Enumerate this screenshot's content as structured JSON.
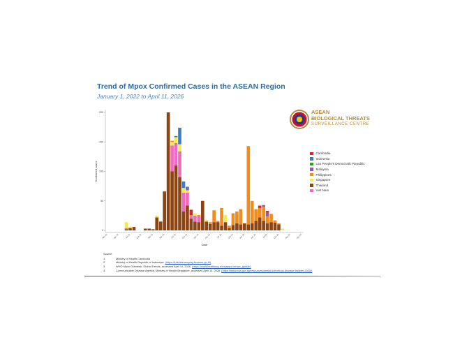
{
  "header": {
    "title": "Trend of Mpox Confirmed Cases in the ASEAN Region",
    "subtitle": "January 1, 2022 to April 11, 2026"
  },
  "logo": {
    "line1": "ASEAN",
    "line2": "BIOLOGICAL THREATS",
    "line3": "SURVEILLANCE CENTRE",
    "colors": {
      "gold": "#b58b35",
      "red": "#c8102e",
      "blue": "#1a3c8a"
    }
  },
  "colors": {
    "Cambodia": "#d62728",
    "Indonesia": "#3a7dc9",
    "Lao People's Democratic Republic": "#2ca02c",
    "Malaysia": "#8e5ba8",
    "Philippines": "#f28c1e",
    "Singapore": "#f5ea4d",
    "Thailand": "#8b4513",
    "Viet Nam": "#f06bbf"
  },
  "sources": {
    "heading": "Source:",
    "items": [
      {
        "num": "1.",
        "text": "Ministry of Health Cambodia",
        "link": ""
      },
      {
        "num": "2.",
        "text": "Ministry of Health Republic of Indonesia",
        "link": "(https://infeksiemerging.kemkes.go.id)"
      },
      {
        "num": "3.",
        "text": "WHO Mpox Outbreak: Global Trends, accessed April 14, 2026",
        "link": "(https://worldhealthorg.shinyapps.io/mpx_global/)"
      },
      {
        "num": "4.",
        "text": "Communicable Disease Agency, Ministry of Health Singapore, accessed April 14, 2026",
        "link": "(https://www.cda.gov.sg/resources/weekly-infectious-disease-bulletin-2025/)"
      }
    ]
  },
  "chart_data": {
    "type": "bar",
    "stacked": true,
    "title": "Trend of Mpox Confirmed Cases in the ASEAN Region",
    "subtitle": "January 1, 2022 to April 11, 2026",
    "xlabel": "Date",
    "ylabel": "Confirmed cases",
    "ylim": [
      0,
      200
    ],
    "yticks": [
      0,
      50,
      100,
      150,
      200
    ],
    "xticks": [
      "Jan 22",
      "Apr 22",
      "Jul 22",
      "Oct 22",
      "Jan 23",
      "Apr 23",
      "Jul 23",
      "Oct 23",
      "Jan 24",
      "Apr 24",
      "Jul 24",
      "Oct 24",
      "Jan 25",
      "Apr 25",
      "Jul 25",
      "Oct 25",
      "Jan 26",
      "Apr 26"
    ],
    "legend_position": "right",
    "legend": [
      "Cambodia",
      "Indonesia",
      "Lao People's Democratic Republic",
      "Malaysia",
      "Philippines",
      "Singapore",
      "Thailand",
      "Viet Nam"
    ],
    "categories": [
      "Jan 22",
      "Feb 22",
      "Mar 22",
      "Apr 22",
      "May 22",
      "Jun 22",
      "Jul 22",
      "Aug 22",
      "Sep 22",
      "Oct 22",
      "Nov 22",
      "Dec 22",
      "Jan 23",
      "Feb 23",
      "Mar 23",
      "Apr 23",
      "May 23",
      "Jun 23",
      "Jul 23",
      "Aug 23",
      "Sep 23",
      "Oct 23",
      "Nov 23",
      "Dec 23",
      "Jan 24",
      "Feb 24",
      "Mar 24",
      "Apr 24",
      "May 24",
      "Jun 24",
      "Jul 24",
      "Aug 24",
      "Sep 24",
      "Oct 24",
      "Nov 24",
      "Dec 24",
      "Jan 25",
      "Feb 25",
      "Mar 25",
      "Apr 25",
      "May 25",
      "Jun 25",
      "Jul 25",
      "Aug 25",
      "Sep 25",
      "Oct 25",
      "Nov 25",
      "Dec 25",
      "Jan 26",
      "Feb 26",
      "Mar 26",
      "Apr 26"
    ],
    "series": [
      {
        "name": "Cambodia",
        "values": [
          0,
          0,
          0,
          0,
          0,
          0,
          0,
          0,
          0,
          0,
          0,
          0,
          0,
          0,
          0,
          0,
          0,
          0,
          0,
          0,
          0,
          0,
          0,
          0,
          0,
          0,
          0,
          0,
          0,
          0,
          0,
          0,
          0,
          0,
          0,
          0,
          0,
          0,
          0,
          0,
          0,
          0,
          0,
          0,
          0,
          0,
          0,
          0,
          0,
          0,
          0,
          0
        ]
      },
      {
        "name": "Indonesia",
        "values": [
          0,
          0,
          0,
          0,
          0,
          0,
          0,
          0,
          0,
          0,
          0,
          0,
          0,
          0,
          0,
          0,
          0,
          0,
          0,
          0,
          0,
          0,
          0,
          0,
          0,
          0,
          0,
          0,
          0,
          0,
          0,
          0,
          0,
          0,
          0,
          0,
          0,
          0,
          0,
          0,
          0,
          0,
          0,
          0,
          0,
          0,
          0,
          0,
          0,
          0,
          0,
          0
        ]
      },
      {
        "name": "Lao People's Democratic Republic",
        "values": [
          0,
          0,
          0,
          0,
          0,
          0,
          0,
          0,
          0,
          0,
          0,
          0,
          0,
          0,
          0,
          0,
          0,
          0,
          0,
          0,
          0,
          0,
          0,
          0,
          0,
          0,
          0,
          0,
          0,
          0,
          0,
          0,
          0,
          0,
          0,
          0,
          0,
          0,
          0,
          0,
          0,
          0,
          0,
          0,
          0,
          0,
          0,
          0,
          0,
          0,
          0,
          0
        ]
      },
      {
        "name": "Malaysia",
        "values": [
          0,
          0,
          0,
          0,
          0,
          0,
          0,
          0,
          0,
          0,
          0,
          0,
          0,
          0,
          0,
          0,
          0,
          0,
          0,
          0,
          0,
          0,
          0,
          0,
          0,
          0,
          0,
          0,
          0,
          0,
          0,
          0,
          0,
          0,
          0,
          0,
          0,
          0,
          0,
          0,
          0,
          0,
          0,
          0,
          0,
          0,
          0,
          0,
          0,
          0,
          0,
          0
        ]
      },
      {
        "name": "Philippines",
        "values": [
          0,
          0,
          0,
          0,
          0,
          0,
          0,
          0,
          0,
          0,
          0,
          0,
          0,
          0,
          0,
          0,
          0,
          0,
          0,
          0,
          0,
          0,
          0,
          0,
          0,
          0,
          0,
          0,
          0,
          0,
          0,
          0,
          0,
          0,
          0,
          0,
          0,
          0,
          0,
          0,
          0,
          0,
          0,
          0,
          0,
          0,
          0,
          0,
          0,
          0,
          0,
          0
        ]
      },
      {
        "name": "Singapore",
        "values": [
          0,
          0,
          0,
          0,
          0,
          0,
          0,
          0,
          0,
          0,
          0,
          0,
          0,
          0,
          0,
          0,
          0,
          0,
          0,
          0,
          0,
          0,
          0,
          0,
          0,
          0,
          0,
          0,
          0,
          0,
          0,
          0,
          0,
          0,
          0,
          0,
          0,
          0,
          0,
          0,
          0,
          0,
          0,
          0,
          0,
          0,
          0,
          0,
          0,
          0,
          0,
          0
        ]
      },
      {
        "name": "Thailand",
        "values": [
          0,
          0,
          0,
          0,
          0,
          0,
          0,
          0,
          0,
          0,
          0,
          0,
          0,
          0,
          0,
          0,
          0,
          0,
          0,
          0,
          0,
          0,
          0,
          0,
          0,
          0,
          0,
          0,
          0,
          0,
          0,
          0,
          0,
          0,
          0,
          0,
          0,
          0,
          0,
          0,
          0,
          0,
          0,
          0,
          0,
          0,
          0,
          0,
          0,
          0,
          0,
          0
        ]
      },
      {
        "name": "Viet Nam",
        "values": [
          0,
          0,
          0,
          0,
          0,
          0,
          0,
          0,
          0,
          0,
          0,
          0,
          0,
          0,
          0,
          0,
          0,
          0,
          0,
          0,
          0,
          0,
          0,
          0,
          0,
          0,
          0,
          0,
          0,
          0,
          0,
          0,
          0,
          0,
          0,
          0,
          0,
          0,
          0,
          0,
          0,
          0,
          0,
          0,
          0,
          0,
          0,
          0,
          0,
          0,
          0,
          0
        ]
      }
    ]
  }
}
